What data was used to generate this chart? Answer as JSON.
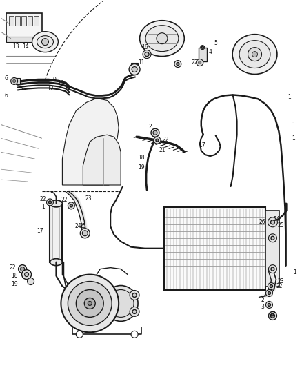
{
  "bg_color": "#ffffff",
  "line_color": "#1a1a1a",
  "gray_color": "#888888",
  "light_gray": "#cccccc",
  "fig_width": 4.38,
  "fig_height": 5.33,
  "dpi": 100,
  "label_fs": 5.8,
  "label_color": "#111111"
}
